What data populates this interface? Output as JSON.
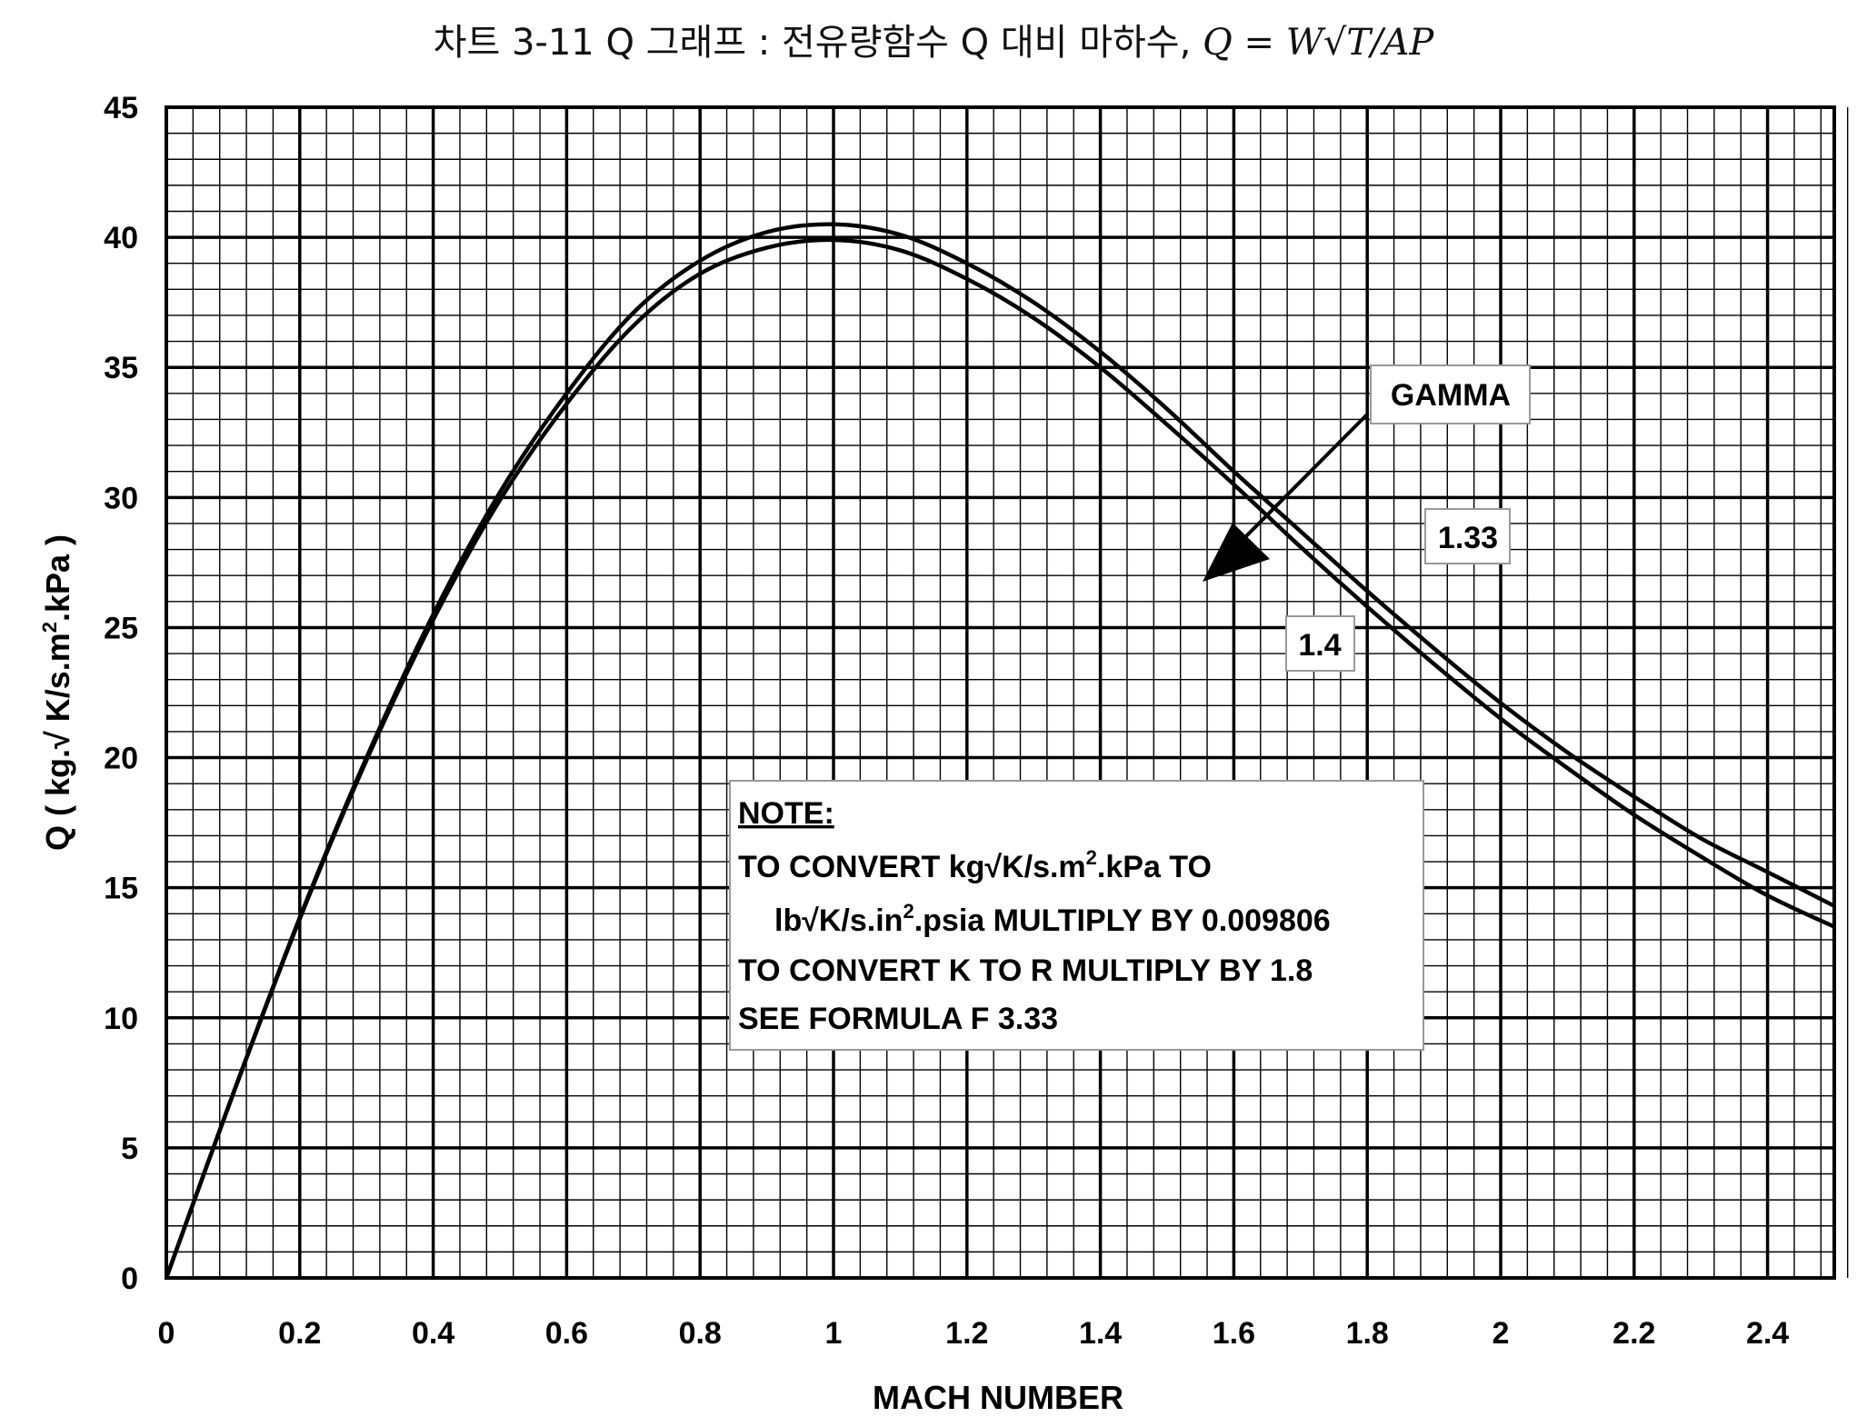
{
  "chart_data": {
    "type": "line",
    "title_prefix": "차트 3-11 Q 그래프 : 전유량함수 Q 대비 마하수, ",
    "title_formula": "Q = W√T/AP",
    "xlabel": "MACH NUMBER",
    "ylabel_prefix": "Q ( kg.√ K/s.m",
    "ylabel_sup": "2",
    "ylabel_suffix": ".kPa )",
    "xlim": [
      0,
      2.5
    ],
    "ylim": [
      0,
      45
    ],
    "x_ticks": [
      0,
      0.2,
      0.4,
      0.6,
      0.8,
      1.0,
      1.2,
      1.4,
      1.6,
      1.8,
      2.0,
      2.2,
      2.4
    ],
    "x_tick_labels": [
      "0",
      "0.2",
      "0.4",
      "0.6",
      "0.8",
      "1",
      "1.2",
      "1.4",
      "1.6",
      "1.8",
      "2",
      "2.2",
      "2.4"
    ],
    "y_ticks": [
      0,
      5,
      10,
      15,
      20,
      25,
      30,
      35,
      40,
      45
    ],
    "y_tick_labels": [
      "0",
      "5",
      "10",
      "15",
      "20",
      "25",
      "30",
      "35",
      "40",
      "45"
    ],
    "grid": true,
    "series": [
      {
        "name": "1.33",
        "x": [
          0,
          0.1,
          0.2,
          0.3,
          0.4,
          0.5,
          0.6,
          0.7,
          0.8,
          0.9,
          1.0,
          1.1,
          1.2,
          1.3,
          1.4,
          1.5,
          1.6,
          1.7,
          1.8,
          1.9,
          2.0,
          2.1,
          2.2,
          2.3,
          2.4,
          2.5
        ],
        "y": [
          0,
          7.08,
          13.85,
          20.0,
          25.5,
          30.2,
          34.0,
          37.1,
          39.1,
          40.2,
          40.5,
          40.1,
          39.0,
          37.5,
          35.6,
          33.4,
          31.0,
          28.7,
          26.4,
          24.2,
          22.1,
          20.2,
          18.5,
          16.9,
          15.6,
          14.3
        ]
      },
      {
        "name": "1.4",
        "x": [
          0,
          0.1,
          0.2,
          0.3,
          0.4,
          0.5,
          0.6,
          0.7,
          0.8,
          0.9,
          1.0,
          1.1,
          1.2,
          1.3,
          1.4,
          1.5,
          1.6,
          1.7,
          1.8,
          1.9,
          2.0,
          2.1,
          2.2,
          2.3,
          2.4,
          2.5
        ],
        "y": [
          0,
          7.06,
          13.8,
          19.9,
          25.3,
          29.9,
          33.6,
          36.6,
          38.6,
          39.6,
          39.9,
          39.5,
          38.4,
          36.9,
          35.0,
          32.8,
          30.5,
          28.1,
          25.8,
          23.6,
          21.5,
          19.6,
          17.8,
          16.2,
          14.7,
          13.5
        ]
      }
    ],
    "annotations": {
      "gamma_label": "GAMMA",
      "curve_label_a": "1.33",
      "curve_label_b": "1.4"
    },
    "note": {
      "heading": "NOTE:",
      "line1_prefix": "TO CONVERT kg√K/s.m",
      "line1_sup": "2",
      "line1_suffix": ".kPa TO",
      "line2_prefix": "lb√K/s.in",
      "line2_sup": "2",
      "line2_suffix": ".psia MULTIPLY BY 0.009806",
      "line3": "TO CONVERT K TO R MULTIPLY BY 1.8",
      "line4": "SEE FORMULA F 3.33"
    },
    "colors": {
      "line": "#000000",
      "grid": "#000000",
      "background": "#ffffff"
    }
  }
}
